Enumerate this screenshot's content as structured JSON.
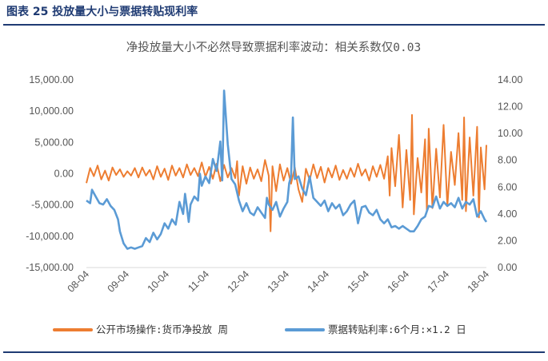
{
  "figure_title": "图表 25  投放量大小与票据转贴现利率",
  "chart_data": {
    "type": "line",
    "title": "净投放量大小不必然导致票据利率波动：相关系数仅0.03",
    "x_ticks": [
      "08-04",
      "09-04",
      "10-04",
      "11-04",
      "12-04",
      "13-04",
      "14-04",
      "15-04",
      "16-04",
      "17-04",
      "18-04"
    ],
    "x_range": [
      2008.0,
      2018.75
    ],
    "y_left": {
      "ticks": [
        "15,000.00",
        "10,000.00",
        "5,000.00",
        "0.00",
        "-5,000.00",
        "-10,000.00",
        "-15,000.00"
      ],
      "range": [
        -15000,
        15000
      ]
    },
    "y_right": {
      "ticks": [
        "14.00",
        "12.00",
        "10.00",
        "8.00",
        "6.00",
        "4.00",
        "2.00",
        "0.00"
      ],
      "range": [
        0,
        14
      ]
    },
    "series": [
      {
        "name": "公开市场操作:货币净投放 周",
        "axis": "left",
        "color": "#ed7d31",
        "x": [
          2008.0,
          2008.1,
          2008.2,
          2008.3,
          2008.4,
          2008.5,
          2008.6,
          2008.7,
          2008.8,
          2008.9,
          2009.0,
          2009.1,
          2009.2,
          2009.3,
          2009.4,
          2009.5,
          2009.6,
          2009.7,
          2009.8,
          2009.9,
          2010.0,
          2010.1,
          2010.2,
          2010.3,
          2010.4,
          2010.5,
          2010.6,
          2010.7,
          2010.8,
          2010.9,
          2011.0,
          2011.1,
          2011.2,
          2011.3,
          2011.4,
          2011.5,
          2011.6,
          2011.7,
          2011.8,
          2011.9,
          2012.0,
          2012.05,
          2012.1,
          2012.2,
          2012.3,
          2012.4,
          2012.5,
          2012.6,
          2012.7,
          2012.8,
          2012.9,
          2012.95,
          2013.0,
          2013.1,
          2013.2,
          2013.3,
          2013.4,
          2013.5,
          2013.6,
          2013.7,
          2013.8,
          2013.9,
          2014.0,
          2014.1,
          2014.2,
          2014.3,
          2014.4,
          2014.5,
          2014.6,
          2014.7,
          2014.8,
          2014.9,
          2015.0,
          2015.1,
          2015.2,
          2015.3,
          2015.4,
          2015.5,
          2015.6,
          2015.7,
          2015.8,
          2015.9,
          2016.0,
          2016.1,
          2016.15,
          2016.2,
          2016.3,
          2016.4,
          2016.5,
          2016.6,
          2016.7,
          2016.75,
          2016.8,
          2016.9,
          2017.0,
          2017.1,
          2017.15,
          2017.2,
          2017.3,
          2017.4,
          2017.5,
          2017.6,
          2017.7,
          2017.8,
          2017.9,
          2018.0,
          2018.1,
          2018.15,
          2018.2,
          2018.3,
          2018.4,
          2018.5,
          2018.55,
          2018.6,
          2018.7,
          2018.75
        ],
        "values": [
          -1500,
          900,
          -400,
          1300,
          -900,
          500,
          -1100,
          1000,
          -200,
          700,
          -500,
          400,
          -300,
          900,
          -600,
          1000,
          -300,
          600,
          -900,
          1200,
          -500,
          800,
          -1000,
          1300,
          -300,
          900,
          -600,
          1500,
          -200,
          900,
          -400,
          1800,
          -500,
          1100,
          -800,
          1600,
          -1200,
          1400,
          -600,
          900,
          -700,
          2000,
          -3500,
          1200,
          -1600,
          1000,
          -800,
          700,
          -1200,
          2200,
          -300,
          -9200,
          1200,
          -2800,
          1500,
          -1100,
          900,
          -1600,
          1000,
          -2500,
          -4500,
          800,
          -1000,
          1500,
          -700,
          1100,
          -1400,
          900,
          -600,
          1300,
          -1000,
          600,
          -800,
          900,
          -500,
          1600,
          -300,
          700,
          -1100,
          1200,
          -500,
          1400,
          -800,
          2800,
          -3500,
          4100,
          -2000,
          6200,
          -5400,
          3800,
          -4200,
          9400,
          -6500,
          2500,
          -3000,
          5500,
          -6000,
          7200,
          -5500,
          4000,
          -3800,
          7800,
          -5200,
          3500,
          -1800,
          6500,
          -4200,
          9000,
          -6000,
          5800,
          -3500,
          7500,
          -7000,
          4200,
          -2500,
          4600
        ]
      },
      {
        "name": "票据转贴利率:6个月:×1.2 日",
        "axis": "right",
        "color": "#5b9bd5",
        "x": [
          2008.0,
          2008.1,
          2008.15,
          2008.25,
          2008.35,
          2008.45,
          2008.55,
          2008.65,
          2008.75,
          2008.85,
          2008.9,
          2009.0,
          2009.1,
          2009.2,
          2009.3,
          2009.4,
          2009.5,
          2009.6,
          2009.7,
          2009.8,
          2009.9,
          2010.0,
          2010.1,
          2010.2,
          2010.3,
          2010.4,
          2010.5,
          2010.6,
          2010.65,
          2010.7,
          2010.75,
          2010.8,
          2010.9,
          2011.0,
          2011.05,
          2011.1,
          2011.2,
          2011.3,
          2011.4,
          2011.5,
          2011.6,
          2011.65,
          2011.7,
          2011.8,
          2011.9,
          2012.0,
          2012.1,
          2012.2,
          2012.3,
          2012.4,
          2012.5,
          2012.6,
          2012.7,
          2012.8,
          2012.85,
          2012.9,
          2013.0,
          2013.1,
          2013.2,
          2013.3,
          2013.4,
          2013.45,
          2013.5,
          2013.55,
          2013.6,
          2013.7,
          2013.8,
          2013.9,
          2014.0,
          2014.1,
          2014.2,
          2014.3,
          2014.4,
          2014.5,
          2014.6,
          2014.7,
          2014.8,
          2014.9,
          2015.0,
          2015.1,
          2015.2,
          2015.3,
          2015.4,
          2015.5,
          2015.6,
          2015.7,
          2015.8,
          2015.9,
          2016.0,
          2016.1,
          2016.2,
          2016.3,
          2016.4,
          2016.5,
          2016.6,
          2016.7,
          2016.8,
          2016.9,
          2017.0,
          2017.1,
          2017.2,
          2017.3,
          2017.4,
          2017.5,
          2017.6,
          2017.7,
          2017.8,
          2017.9,
          2018.0,
          2018.1,
          2018.2,
          2018.3,
          2018.4,
          2018.5,
          2018.6,
          2018.7,
          2018.75
        ],
        "values": [
          5.0,
          4.8,
          5.8,
          5.3,
          4.8,
          4.7,
          5.1,
          4.6,
          4.3,
          3.6,
          2.7,
          1.8,
          1.4,
          1.5,
          1.4,
          1.5,
          1.6,
          2.2,
          1.9,
          2.6,
          2.1,
          2.5,
          3.3,
          2.9,
          3.6,
          3.2,
          4.9,
          4.0,
          5.5,
          4.5,
          3.4,
          4.7,
          5.3,
          5.0,
          7.0,
          6.1,
          6.8,
          6.3,
          8.1,
          7.2,
          9.4,
          6.5,
          13.2,
          9.2,
          6.6,
          6.2,
          5.0,
          4.2,
          4.8,
          4.1,
          3.9,
          4.5,
          4.1,
          3.7,
          5.2,
          4.7,
          4.3,
          4.9,
          3.8,
          4.4,
          4.9,
          6.3,
          6.8,
          11.2,
          6.6,
          6.8,
          5.9,
          5.4,
          6.8,
          5.2,
          4.9,
          4.6,
          5.0,
          4.2,
          4.8,
          4.4,
          4.7,
          3.9,
          4.2,
          4.7,
          5.0,
          3.3,
          4.5,
          4.6,
          4.1,
          3.9,
          4.3,
          3.6,
          3.3,
          3.6,
          3.0,
          3.1,
          2.9,
          3.1,
          2.9,
          2.7,
          2.7,
          3.1,
          3.6,
          3.8,
          4.6,
          4.5,
          5.3,
          4.4,
          4.9,
          4.6,
          4.8,
          4.5,
          5.2,
          4.4,
          4.9,
          4.7,
          5.1,
          3.8,
          4.2,
          3.6,
          3.4
        ]
      }
    ],
    "legend": "bottom",
    "grid": false
  }
}
